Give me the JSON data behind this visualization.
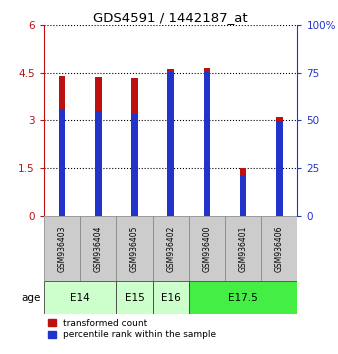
{
  "title": "GDS4591 / 1442187_at",
  "samples": [
    "GSM936403",
    "GSM936404",
    "GSM936405",
    "GSM936402",
    "GSM936400",
    "GSM936401",
    "GSM936406"
  ],
  "transformed_count": [
    4.4,
    4.36,
    4.32,
    4.62,
    4.65,
    1.5,
    3.1
  ],
  "percentile_rank_scaled": [
    3.35,
    3.28,
    3.2,
    4.52,
    4.52,
    1.28,
    2.98
  ],
  "age_groups": [
    {
      "label": "E14",
      "start": 0,
      "end": 2,
      "color": "#ccffcc"
    },
    {
      "label": "E15",
      "start": 2,
      "end": 3,
      "color": "#ccffcc"
    },
    {
      "label": "E16",
      "start": 3,
      "end": 4,
      "color": "#ccffcc"
    },
    {
      "label": "E17.5",
      "start": 4,
      "end": 7,
      "color": "#44ee44"
    }
  ],
  "ylim_left": [
    0,
    6
  ],
  "ylim_right": [
    0,
    100
  ],
  "yticks_left": [
    0,
    1.5,
    3,
    4.5,
    6
  ],
  "ytick_labels_left": [
    "0",
    "1.5",
    "3",
    "4.5",
    "6"
  ],
  "yticks_right": [
    0,
    25,
    50,
    75,
    100
  ],
  "ytick_labels_right": [
    "0",
    "25",
    "50",
    "75",
    "100%"
  ],
  "bar_color": "#bb1111",
  "percentile_color": "#2233cc",
  "bar_width": 0.18,
  "blue_bar_width": 0.18,
  "grid_color": "black",
  "sample_box_color": "#cccccc",
  "legend_items": [
    {
      "label": "transformed count",
      "color": "#bb1111"
    },
    {
      "label": "percentile rank within the sample",
      "color": "#2233cc"
    }
  ]
}
